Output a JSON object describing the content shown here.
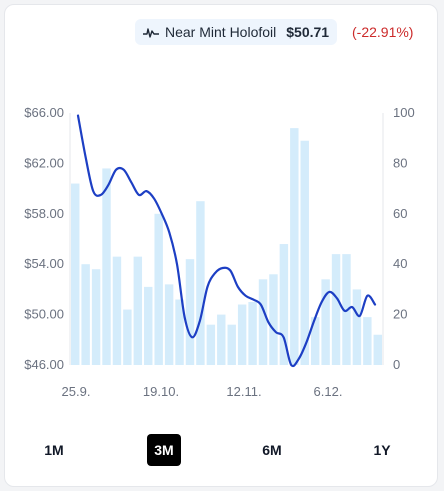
{
  "legend": {
    "name": "Near Mint Holofoil",
    "price": "$50.71",
    "change": "(-22.91%)",
    "icon": "price-line-icon"
  },
  "range_buttons": [
    {
      "label": "1M",
      "active": false
    },
    {
      "label": "3M",
      "active": true
    },
    {
      "label": "6M",
      "active": false
    },
    {
      "label": "1Y",
      "active": false
    }
  ],
  "colors": {
    "line": "#1d3fc4",
    "bars": "#d4ecfb",
    "change_negative": "#cc2a2a",
    "active_button": "#000000"
  },
  "chart_data": {
    "type": "line",
    "x_tick_labels": [
      "25.9.",
      "19.10.",
      "12.11.",
      "6.12."
    ],
    "y_left": {
      "ticks": [
        "$66.00",
        "$62.00",
        "$58.00",
        "$54.00",
        "$50.00",
        "$46.00"
      ],
      "ylim": [
        46,
        66
      ]
    },
    "y_right": {
      "ticks": [
        "100",
        "80",
        "60",
        "40",
        "20",
        "0"
      ],
      "ylim": [
        0,
        100
      ]
    },
    "series": [
      {
        "type": "line",
        "axis": "left",
        "values": [
          65.8,
          62.5,
          59.8,
          59.5,
          60.3,
          61.5,
          61.5,
          60.5,
          59.5,
          59.8,
          59.2,
          58.0,
          56.5,
          54.0,
          49.8,
          48.2,
          49.5,
          52.2,
          53.3,
          53.7,
          53.5,
          52.2,
          51.5,
          51.2,
          50.8,
          49.4,
          48.6,
          48.2,
          46.0,
          46.5,
          47.8,
          49.5,
          51.0,
          51.8,
          51.3,
          50.3,
          50.6,
          49.9,
          51.5,
          50.8
        ]
      },
      {
        "type": "bar",
        "axis": "right",
        "values": [
          72,
          40,
          38,
          78,
          43,
          22,
          43,
          31,
          60,
          32,
          26,
          42,
          65,
          16,
          20,
          16,
          24,
          25,
          34,
          36,
          48,
          94,
          89,
          19,
          34,
          44,
          44,
          30,
          19,
          12
        ]
      }
    ]
  }
}
